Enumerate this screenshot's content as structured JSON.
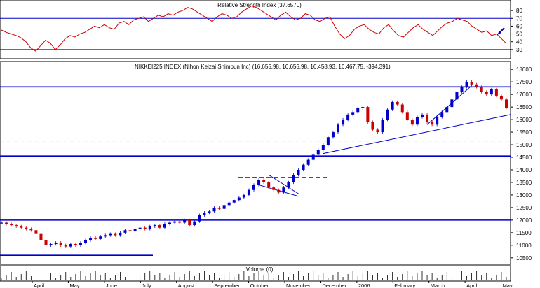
{
  "colors": {
    "background": "#ffffff",
    "border": "#000000",
    "rsi_line": "#cc0000",
    "reference_line": "#0000cc",
    "dashed_line": "#000000",
    "support_line": "#e8b800",
    "up_candle": "#0000cc",
    "down_candle": "#cc0000",
    "trendline": "#0000cc",
    "volume": "#000000"
  },
  "chart_data": [
    {
      "type": "line",
      "title": "Relative Strength Index (37.6570)",
      "ylim": [
        20,
        90
      ],
      "y_ticks": [
        "80",
        "70",
        "60",
        "50",
        "40",
        "30"
      ],
      "reference_levels": [
        70,
        50,
        30
      ],
      "annotations": [
        "arrow pointing to RSI around 50 in May"
      ],
      "series": [
        {
          "values": [
            55,
            52,
            50,
            48,
            45,
            40,
            32,
            28,
            35,
            42,
            38,
            30,
            36,
            44,
            48,
            46,
            50,
            52,
            56,
            60,
            58,
            62,
            58,
            56,
            64,
            66,
            62,
            68,
            70,
            72,
            66,
            70,
            74,
            72,
            76,
            74,
            78,
            80,
            84,
            82,
            78,
            74,
            70,
            66,
            72,
            76,
            74,
            70,
            72,
            78,
            82,
            86,
            84,
            80,
            76,
            72,
            68,
            74,
            78,
            72,
            68,
            70,
            76,
            74,
            68,
            66,
            70,
            72,
            60,
            50,
            44,
            48,
            56,
            60,
            62,
            56,
            52,
            50,
            58,
            62,
            54,
            48,
            46,
            52,
            58,
            62,
            56,
            52,
            48,
            54,
            60,
            64,
            66,
            70,
            68,
            66,
            60,
            56,
            52,
            54,
            48,
            50,
            44,
            37.657
          ]
        }
      ]
    },
    {
      "type": "candlestick",
      "title": "NIKKEI225 INDEX (Nihon Keizai Shimbun Inc) (16,655.98, 16,655.98, 16,458.93, 16,467.75, -394.391)",
      "ylim": [
        10300,
        18200
      ],
      "y_ticks": [
        "18000",
        "17500",
        "17000",
        "16500",
        "16000",
        "15500",
        "15000",
        "14500",
        "14000",
        "13500",
        "13000",
        "12500",
        "12000",
        "11500",
        "11000",
        "10500"
      ],
      "x_labels": [
        "April",
        "May",
        "June",
        "July",
        "August",
        "September",
        "October",
        "November",
        "December",
        "2006",
        "February",
        "March",
        "April",
        "May"
      ],
      "horizontal_levels": [
        {
          "value": 17300,
          "style": "solid",
          "color": "blue"
        },
        {
          "value": 15150,
          "style": "dashed",
          "color": "yellow"
        },
        {
          "value": 14550,
          "style": "solid",
          "color": "blue"
        },
        {
          "value": 13700,
          "style": "dashed",
          "color": "blue"
        },
        {
          "value": 12000,
          "style": "solid",
          "color": "blue"
        },
        {
          "value": 10600,
          "style": "solid",
          "color": "blue"
        }
      ],
      "closes": [
        11900,
        11850,
        11800,
        11750,
        11700,
        11650,
        11600,
        11450,
        11200,
        11000,
        11050,
        11100,
        11000,
        10950,
        11050,
        11000,
        11100,
        11200,
        11300,
        11250,
        11350,
        11400,
        11450,
        11400,
        11500,
        11600,
        11550,
        11650,
        11700,
        11650,
        11750,
        11800,
        11700,
        11850,
        11900,
        11950,
        11900,
        12000,
        11800,
        11950,
        12200,
        12300,
        12350,
        12500,
        12450,
        12600,
        12700,
        12800,
        12900,
        13000,
        13200,
        13400,
        13600,
        13500,
        13300,
        13200,
        13100,
        13300,
        13500,
        13800,
        14000,
        14200,
        14400,
        14600,
        14800,
        15000,
        15300,
        15500,
        15800,
        16000,
        16200,
        16300,
        16450,
        16500,
        15900,
        15600,
        15500,
        16000,
        16400,
        16700,
        16600,
        16300,
        16000,
        15800,
        16100,
        16200,
        15900,
        15800,
        16100,
        16300,
        16500,
        16800,
        17100,
        17300,
        17500,
        17400,
        17300,
        17100,
        17000,
        17200,
        16950,
        16800,
        16467.75
      ]
    },
    {
      "type": "bar",
      "title": "Volume (0)"
    }
  ]
}
